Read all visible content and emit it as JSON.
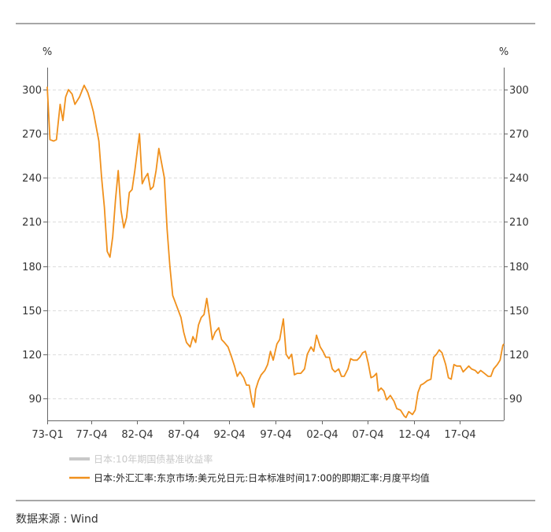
{
  "chart_data": {
    "type": "line",
    "left_unit": "%",
    "right_unit": "%",
    "x_ticks": [
      "73-Q1",
      "77-Q4",
      "82-Q4",
      "87-Q4",
      "92-Q4",
      "97-Q4",
      "02-Q4",
      "07-Q4",
      "12-Q4",
      "17-Q4"
    ],
    "y_ticks": [
      90,
      120,
      150,
      180,
      210,
      240,
      270,
      300
    ],
    "ylim": [
      75,
      315
    ],
    "grid": true,
    "legend_position": "bottom",
    "series": [
      {
        "name": "日本:10年期国债基准收益率",
        "color": "#c8c8c8",
        "values": []
      },
      {
        "name": "日本:外汇汇率:东京市场:美元兑日元:日本标准时间17:00的即期汇率:月度平均值",
        "color": "#f0901c",
        "points": [
          [
            1973.0,
            302
          ],
          [
            1973.3,
            266
          ],
          [
            1973.7,
            265
          ],
          [
            1974.0,
            266
          ],
          [
            1974.4,
            290
          ],
          [
            1974.7,
            279
          ],
          [
            1975.0,
            295
          ],
          [
            1975.3,
            300
          ],
          [
            1975.7,
            297
          ],
          [
            1976.0,
            290
          ],
          [
            1976.5,
            295
          ],
          [
            1977.0,
            303
          ],
          [
            1977.4,
            298
          ],
          [
            1977.7,
            292
          ],
          [
            1978.0,
            285
          ],
          [
            1978.3,
            275
          ],
          [
            1978.6,
            265
          ],
          [
            1978.9,
            240
          ],
          [
            1979.2,
            220
          ],
          [
            1979.5,
            190
          ],
          [
            1979.8,
            186
          ],
          [
            1980.1,
            200
          ],
          [
            1980.4,
            225
          ],
          [
            1980.7,
            245
          ],
          [
            1981.0,
            218
          ],
          [
            1981.3,
            206
          ],
          [
            1981.6,
            213
          ],
          [
            1981.9,
            230
          ],
          [
            1982.2,
            232
          ],
          [
            1982.5,
            245
          ],
          [
            1982.8,
            260
          ],
          [
            1983.0,
            270
          ],
          [
            1983.3,
            236
          ],
          [
            1983.6,
            240
          ],
          [
            1983.9,
            243
          ],
          [
            1984.2,
            232
          ],
          [
            1984.5,
            234
          ],
          [
            1984.8,
            245
          ],
          [
            1985.1,
            260
          ],
          [
            1985.4,
            250
          ],
          [
            1985.7,
            240
          ],
          [
            1986.0,
            205
          ],
          [
            1986.3,
            180
          ],
          [
            1986.6,
            160
          ],
          [
            1986.9,
            155
          ],
          [
            1987.2,
            150
          ],
          [
            1987.5,
            145
          ],
          [
            1987.8,
            135
          ],
          [
            1988.1,
            128
          ],
          [
            1988.5,
            125
          ],
          [
            1988.8,
            132
          ],
          [
            1989.1,
            128
          ],
          [
            1989.4,
            140
          ],
          [
            1989.7,
            145
          ],
          [
            1990.0,
            147
          ],
          [
            1990.3,
            158
          ],
          [
            1990.6,
            145
          ],
          [
            1990.9,
            130
          ],
          [
            1991.2,
            135
          ],
          [
            1991.6,
            138
          ],
          [
            1991.9,
            130
          ],
          [
            1992.2,
            128
          ],
          [
            1992.6,
            125
          ],
          [
            1993.0,
            118
          ],
          [
            1993.3,
            112
          ],
          [
            1993.6,
            105
          ],
          [
            1993.9,
            108
          ],
          [
            1994.3,
            104
          ],
          [
            1994.6,
            99
          ],
          [
            1994.9,
            99
          ],
          [
            1995.2,
            88
          ],
          [
            1995.4,
            84
          ],
          [
            1995.6,
            96
          ],
          [
            1995.9,
            102
          ],
          [
            1996.2,
            106
          ],
          [
            1996.6,
            109
          ],
          [
            1996.9,
            113
          ],
          [
            1997.2,
            122
          ],
          [
            1997.5,
            116
          ],
          [
            1997.9,
            127
          ],
          [
            1998.2,
            130
          ],
          [
            1998.6,
            144
          ],
          [
            1998.9,
            120
          ],
          [
            1999.2,
            117
          ],
          [
            1999.5,
            120
          ],
          [
            1999.8,
            106
          ],
          [
            2000.1,
            107
          ],
          [
            2000.5,
            107
          ],
          [
            2000.9,
            110
          ],
          [
            2001.2,
            120
          ],
          [
            2001.6,
            125
          ],
          [
            2001.9,
            122
          ],
          [
            2002.2,
            133
          ],
          [
            2002.6,
            125
          ],
          [
            2002.9,
            122
          ],
          [
            2003.2,
            118
          ],
          [
            2003.6,
            118
          ],
          [
            2003.9,
            110
          ],
          [
            2004.2,
            108
          ],
          [
            2004.6,
            110
          ],
          [
            2004.9,
            105
          ],
          [
            2005.2,
            105
          ],
          [
            2005.6,
            110
          ],
          [
            2005.9,
            117
          ],
          [
            2006.2,
            116
          ],
          [
            2006.6,
            116
          ],
          [
            2006.9,
            118
          ],
          [
            2007.2,
            121
          ],
          [
            2007.5,
            122
          ],
          [
            2007.8,
            114
          ],
          [
            2008.1,
            104
          ],
          [
            2008.4,
            105
          ],
          [
            2008.7,
            107
          ],
          [
            2008.9,
            95
          ],
          [
            2009.2,
            97
          ],
          [
            2009.5,
            95
          ],
          [
            2009.8,
            89
          ],
          [
            2010.2,
            92
          ],
          [
            2010.6,
            88
          ],
          [
            2010.9,
            83
          ],
          [
            2011.3,
            82
          ],
          [
            2011.7,
            78
          ],
          [
            2011.9,
            77
          ],
          [
            2012.2,
            81
          ],
          [
            2012.6,
            79
          ],
          [
            2012.9,
            82
          ],
          [
            2013.2,
            94
          ],
          [
            2013.5,
            99
          ],
          [
            2013.8,
            100
          ],
          [
            2014.2,
            102
          ],
          [
            2014.6,
            103
          ],
          [
            2014.9,
            118
          ],
          [
            2015.2,
            120
          ],
          [
            2015.5,
            123
          ],
          [
            2015.8,
            121
          ],
          [
            2016.2,
            113
          ],
          [
            2016.5,
            104
          ],
          [
            2016.8,
            103
          ],
          [
            2017.1,
            113
          ],
          [
            2017.4,
            112
          ],
          [
            2017.8,
            112
          ],
          [
            2018.1,
            108
          ],
          [
            2018.4,
            110
          ],
          [
            2018.7,
            112
          ],
          [
            2019.0,
            110
          ],
          [
            2019.4,
            109
          ],
          [
            2019.7,
            107
          ],
          [
            2020.0,
            109
          ],
          [
            2020.4,
            107
          ],
          [
            2020.8,
            105
          ],
          [
            2021.1,
            105
          ],
          [
            2021.4,
            110
          ],
          [
            2021.8,
            113
          ],
          [
            2022.1,
            116
          ],
          [
            2022.4,
            126
          ],
          [
            2022.5,
            127
          ]
        ]
      }
    ]
  },
  "source_label": "数据来源 : Wind"
}
